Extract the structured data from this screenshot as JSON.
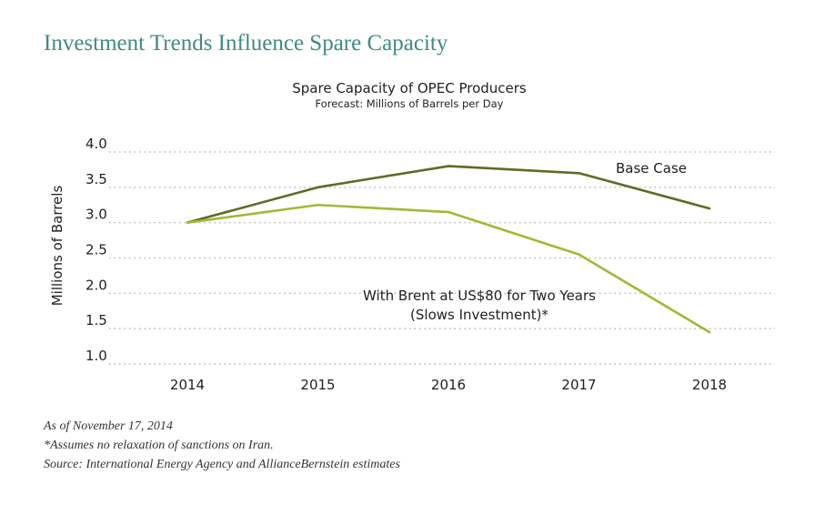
{
  "headline": "Investment Trends Influence Spare Capacity",
  "footnotes": {
    "as_of": "As of November 17, 2014",
    "note": "*Assumes no relaxation of sanctions on Iran.",
    "source": "Source: International Energy Agency and AllianceBernstein estimates"
  },
  "colors": {
    "headline": "#3f8a86",
    "base_case": "#5c6e22",
    "brent_case": "#a3b835",
    "gridline": "#b5b5b5"
  },
  "chart_data": {
    "type": "line",
    "title": "Spare Capacity of OPEC Producers",
    "subtitle": "Forecast: Millions of Barrels per Day",
    "xlabel": "",
    "ylabel": "Millions of Barrels",
    "x": [
      "2014",
      "2015",
      "2016",
      "2017",
      "2018"
    ],
    "ylim": [
      1.0,
      4.0
    ],
    "yticks": [
      "4.0",
      "3.5",
      "3.0",
      "2.5",
      "2.0",
      "1.5",
      "1.0"
    ],
    "grid": "horizontal-dotted",
    "series": [
      {
        "name": "Base Case",
        "values": [
          3.0,
          3.5,
          3.8,
          3.7,
          3.2
        ],
        "label_lines": [
          "Base Case"
        ]
      },
      {
        "name": "With Brent at US$80 for Two Years (Slows Investment)*",
        "values": [
          3.0,
          3.25,
          3.15,
          2.55,
          1.45
        ],
        "label_lines": [
          "With Brent at US$80 for Two Years",
          "(Slows Investment)*"
        ]
      }
    ]
  }
}
